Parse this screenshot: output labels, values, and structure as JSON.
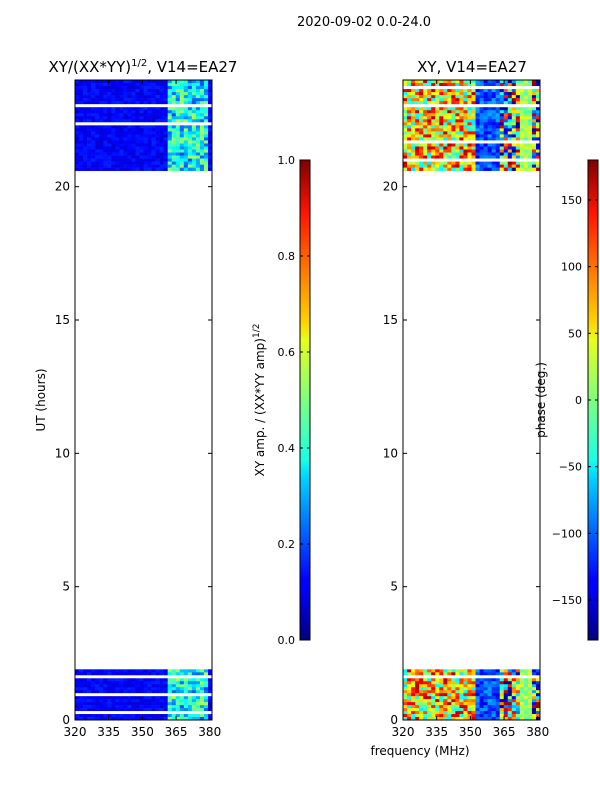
{
  "figure": {
    "suptitle": "2020-09-02 0.0-24.0",
    "xlabel": "frequency (MHz)"
  },
  "chart_data": [
    {
      "type": "heatmap",
      "title_main": "XY/(XX*YY)",
      "title_sup": "1/2",
      "title_rest": ", V14=EA27",
      "xlabel": "",
      "ylabel": "UT (hours)",
      "xlim": [
        320,
        381
      ],
      "ylim": [
        0,
        24
      ],
      "x_ticks": [
        320,
        335,
        350,
        365,
        380
      ],
      "y_ticks": [
        0,
        5,
        10,
        15,
        20
      ],
      "data_time_ranges_hours": [
        [
          0.0,
          1.9
        ],
        [
          20.6,
          24.0
        ]
      ],
      "colorbar": {
        "label_main": "XY amp. / (XX*YY amp)",
        "label_sup": "1/2",
        "range": [
          0.0,
          1.0
        ],
        "ticks": [
          "0.0",
          "0.2",
          "0.4",
          "0.6",
          "0.8",
          "1.0"
        ],
        "colormap": "jet"
      }
    },
    {
      "type": "heatmap",
      "title": "XY, V14=EA27",
      "xlabel": "",
      "ylabel": "",
      "xlim": [
        320,
        381
      ],
      "ylim": [
        0,
        24
      ],
      "x_ticks": [
        320,
        335,
        350,
        365,
        380
      ],
      "y_ticks": [
        0,
        5,
        10,
        15,
        20
      ],
      "data_time_ranges_hours": [
        [
          0.0,
          1.9
        ],
        [
          20.6,
          24.0
        ]
      ],
      "colorbar": {
        "label": "phase (deg.)",
        "range": [
          -180,
          180
        ],
        "ticks": [
          "−150",
          "−100",
          "−50",
          "0",
          "50",
          "100",
          "150"
        ],
        "tick_values": [
          -150,
          -100,
          -50,
          0,
          50,
          100,
          150
        ],
        "colormap": "jet"
      }
    }
  ]
}
